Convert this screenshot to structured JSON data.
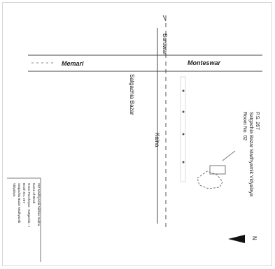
{
  "map": {
    "roads": {
      "burdwan": "Burdwan",
      "memari": "Memari",
      "monteswar": "Monteswar",
      "satgachia_bazar": "Satgachia Bazar",
      "kalna": "Kalna"
    },
    "polling_station": {
      "line1": "P.S. 267",
      "line2": "Satgachia Bazar Madhyamik Vidyalaya",
      "line3": "Room No. 02"
    },
    "north_label": "N",
    "legend": {
      "lines": [
        "267 Madhyamik Vidhan Sabha",
        "Name of Block",
        "Gram Panchayat : Satgachia - I",
        "Booth No. 267",
        "Satgachia Bazar Madhyamik",
        "Vidyalaya"
      ]
    }
  }
}
